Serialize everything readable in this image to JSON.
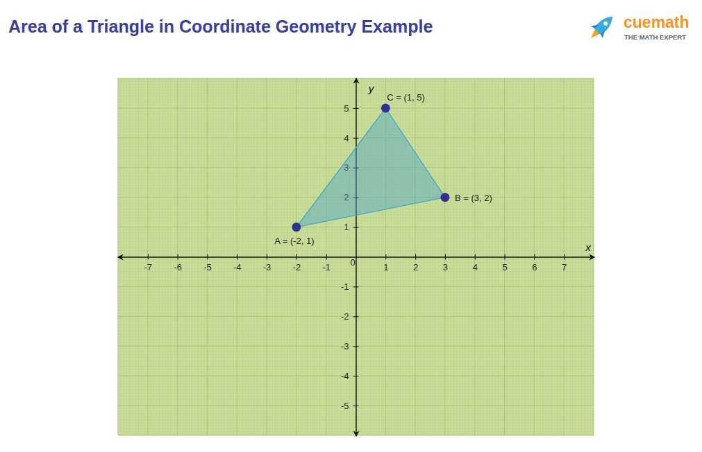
{
  "chart_data": {
    "type": "polygon",
    "title": "Area of a Triangle in Coordinate Geometry Example",
    "logo": {
      "name": "cuemath",
      "tagline": "THE MATH EXPERT"
    },
    "x_label": "x",
    "y_label": "y",
    "x": [
      -2,
      3,
      1
    ],
    "values": [
      1,
      2,
      5
    ],
    "point_labels": [
      "A = (-2, 1)",
      "B = (3, 2)",
      "C = (1, 5)"
    ],
    "color": "#4aa3c9",
    "marker": "circle",
    "xlim": [
      -8,
      8
    ],
    "ylim": [
      -6,
      6
    ],
    "xticks": [
      -7,
      -6,
      -5,
      -4,
      -3,
      -2,
      -1,
      0,
      1,
      2,
      3,
      4,
      5,
      6,
      7
    ],
    "yticks": [
      -5,
      -4,
      -3,
      -2,
      -1,
      1,
      2,
      3,
      4,
      5
    ],
    "grid": true
  }
}
